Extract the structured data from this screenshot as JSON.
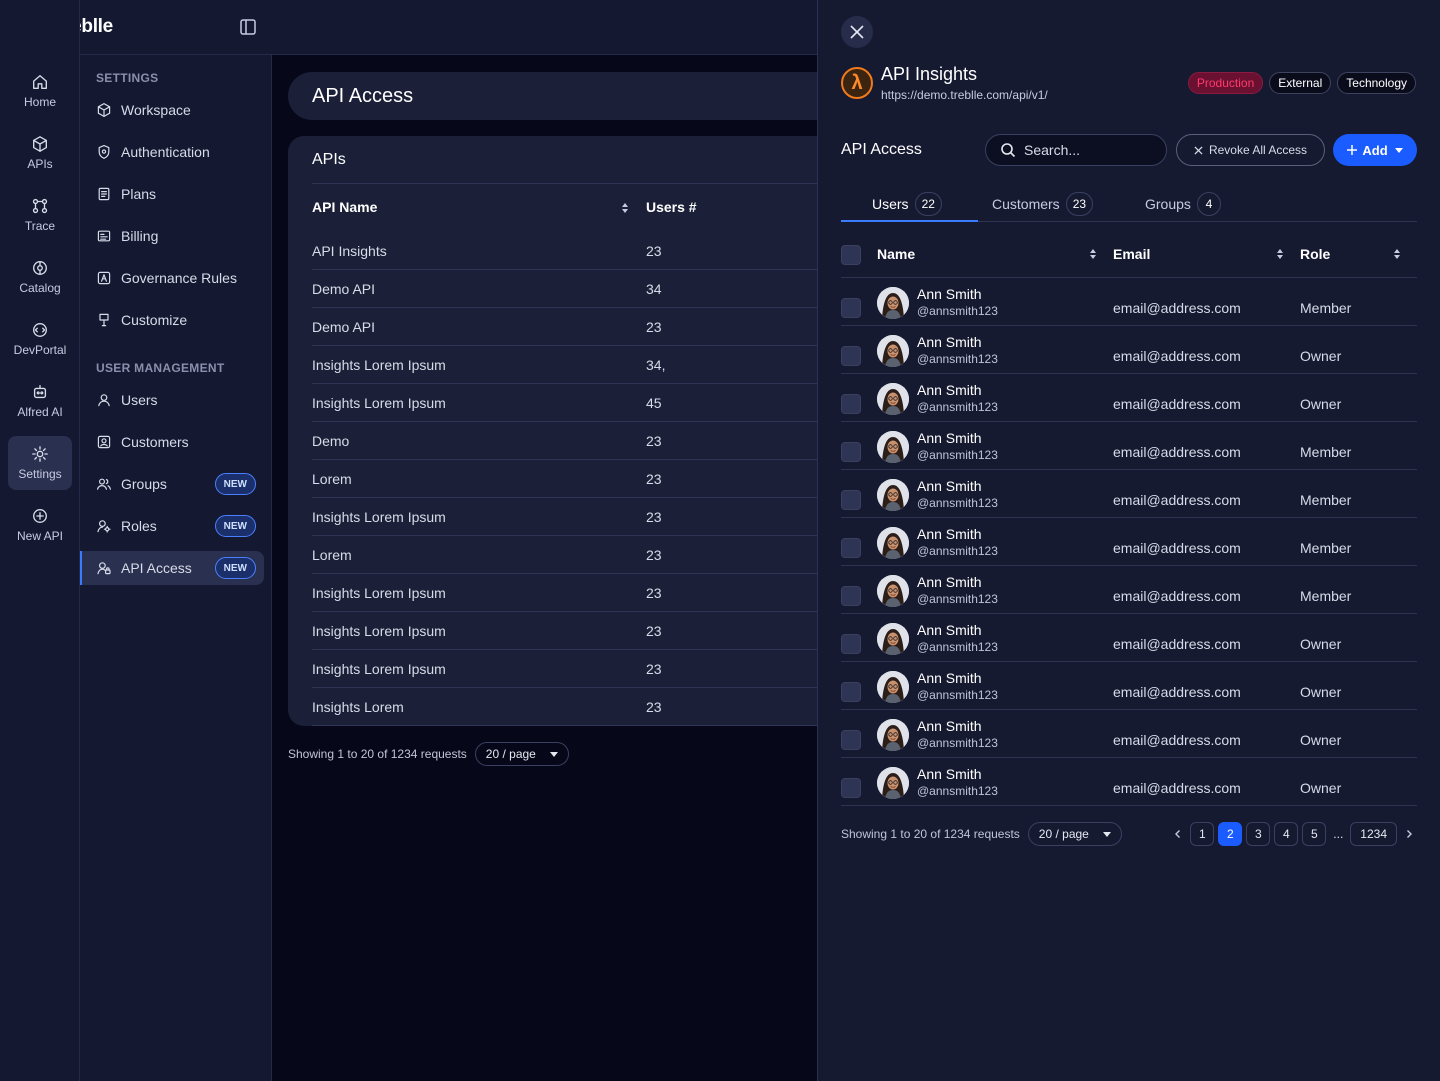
{
  "brand": {
    "name": "treblle"
  },
  "rail": [
    {
      "label": "Home",
      "icon": "home-icon",
      "active": false
    },
    {
      "label": "APIs",
      "icon": "cube-icon",
      "active": false
    },
    {
      "label": "Trace",
      "icon": "trace-icon",
      "active": false
    },
    {
      "label": "Catalog",
      "icon": "catalog-icon",
      "active": false
    },
    {
      "label": "DevPortal",
      "icon": "devportal-icon",
      "active": false
    },
    {
      "label": "Alfred AI",
      "icon": "robot-icon",
      "active": false
    },
    {
      "label": "Settings",
      "icon": "gear-icon",
      "active": true
    },
    {
      "label": "New API",
      "icon": "plus-circle-icon",
      "active": false
    }
  ],
  "sidebar": {
    "settings_title": "SETTINGS",
    "settings_items": [
      {
        "label": "Workspace",
        "icon": "cube-icon"
      },
      {
        "label": "Authentication",
        "icon": "shield-icon"
      },
      {
        "label": "Plans",
        "icon": "plans-icon"
      },
      {
        "label": "Billing",
        "icon": "billing-icon"
      },
      {
        "label": "Governance Rules",
        "icon": "governance-icon"
      },
      {
        "label": "Customize",
        "icon": "brush-icon"
      }
    ],
    "user_title": "USER MANAGEMENT",
    "user_items": [
      {
        "label": "Users",
        "icon": "user-icon",
        "badge": ""
      },
      {
        "label": "Customers",
        "icon": "customer-icon",
        "badge": ""
      },
      {
        "label": "Groups",
        "icon": "group-icon",
        "badge": "NEW"
      },
      {
        "label": "Roles",
        "icon": "roles-icon",
        "badge": "NEW"
      },
      {
        "label": "API Access",
        "icon": "api-access-icon",
        "badge": "NEW",
        "active": true
      }
    ]
  },
  "main": {
    "title": "API Access",
    "card_title": "APIs",
    "col_name": "API Name",
    "col_users": "Users #",
    "rows": [
      {
        "name": "API Insights",
        "users": "23"
      },
      {
        "name": "Demo API",
        "users": "34"
      },
      {
        "name": "Demo API",
        "users": "23"
      },
      {
        "name": "Insights Lorem Ipsum",
        "users": "34,"
      },
      {
        "name": "Insights Lorem Ipsum",
        "users": "45"
      },
      {
        "name": "Demo",
        "users": "23"
      },
      {
        "name": "Lorem",
        "users": "23"
      },
      {
        "name": "Insights Lorem Ipsum",
        "users": "23"
      },
      {
        "name": "Lorem",
        "users": "23"
      },
      {
        "name": "Insights Lorem Ipsum",
        "users": "23"
      },
      {
        "name": "Insights Lorem Ipsum",
        "users": "23"
      },
      {
        "name": "Insights Lorem Ipsum",
        "users": "23"
      },
      {
        "name": "Insights Lorem",
        "users": "23"
      }
    ],
    "footer_text": "Showing 1 to 20 of 1234 requests",
    "per_page": "20 / page"
  },
  "drawer": {
    "api_name": "API Insights",
    "api_url": "https://demo.treblle.com/api/v1/",
    "logo_glyph": "λ",
    "tags": [
      {
        "label": "Production",
        "kind": "prod"
      },
      {
        "label": "External",
        "kind": "normal"
      },
      {
        "label": "Technology",
        "kind": "normal"
      }
    ],
    "section_title": "API Access",
    "search_placeholder": "Search...",
    "revoke_label": "Revoke All Access",
    "add_label": "Add",
    "tabs": [
      {
        "label": "Users",
        "count": "22",
        "active": true
      },
      {
        "label": "Customers",
        "count": "23",
        "active": false
      },
      {
        "label": "Groups",
        "count": "4",
        "active": false
      }
    ],
    "col_name": "Name",
    "col_email": "Email",
    "col_role": "Role",
    "users": [
      {
        "name": "Ann Smith",
        "handle": "@annsmith123",
        "email": "email@address.com",
        "role": "Member"
      },
      {
        "name": "Ann Smith",
        "handle": "@annsmith123",
        "email": "email@address.com",
        "role": "Owner"
      },
      {
        "name": "Ann Smith",
        "handle": "@annsmith123",
        "email": "email@address.com",
        "role": "Owner"
      },
      {
        "name": "Ann Smith",
        "handle": "@annsmith123",
        "email": "email@address.com",
        "role": "Member"
      },
      {
        "name": "Ann Smith",
        "handle": "@annsmith123",
        "email": "email@address.com",
        "role": "Member"
      },
      {
        "name": "Ann Smith",
        "handle": "@annsmith123",
        "email": "email@address.com",
        "role": "Member"
      },
      {
        "name": "Ann Smith",
        "handle": "@annsmith123",
        "email": "email@address.com",
        "role": "Member"
      },
      {
        "name": "Ann Smith",
        "handle": "@annsmith123",
        "email": "email@address.com",
        "role": "Owner"
      },
      {
        "name": "Ann Smith",
        "handle": "@annsmith123",
        "email": "email@address.com",
        "role": "Owner"
      },
      {
        "name": "Ann Smith",
        "handle": "@annsmith123",
        "email": "email@address.com",
        "role": "Owner"
      },
      {
        "name": "Ann Smith",
        "handle": "@annsmith123",
        "email": "email@address.com",
        "role": "Owner"
      }
    ],
    "footer_text": "Showing 1 to 20 of 1234 requests",
    "per_page": "20 / page",
    "pages": [
      "1",
      "2",
      "3",
      "4",
      "5",
      "...",
      "1234"
    ],
    "current_page": "2"
  }
}
